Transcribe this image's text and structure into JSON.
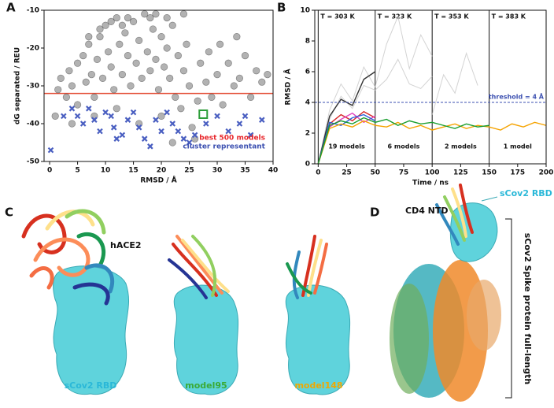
{
  "chart_data": [
    {
      "type": "scatter",
      "panel": "A",
      "xlabel": "RMSD / Å",
      "ylabel": "dG separated / REU",
      "xlim": [
        -1,
        40
      ],
      "ylim": [
        -50,
        -10
      ],
      "xticks": [
        0,
        5,
        10,
        15,
        20,
        25,
        30,
        35,
        40
      ],
      "yticks": [
        -50,
        -40,
        -30,
        -20,
        -10
      ],
      "hline": {
        "value": -32,
        "color": "#e34a33"
      },
      "annotations": [
        {
          "text": "best 500 models",
          "color": "#e8262b"
        },
        {
          "text": "cluster representant",
          "color": "#3b4fb0"
        }
      ],
      "series": [
        {
          "marker": "circle",
          "color": "#555555",
          "x": [
            1,
            1.5,
            2,
            3,
            3.5,
            4,
            5,
            5,
            6,
            6.5,
            7,
            7.5,
            8,
            8.5,
            9,
            9.5,
            10,
            10.5,
            11,
            11.5,
            12,
            12.5,
            13,
            13.5,
            14,
            14.5,
            15,
            15.5,
            16,
            16.5,
            17,
            17.5,
            18,
            18.5,
            19,
            19.5,
            20,
            20.5,
            21,
            21.5,
            22,
            22.5,
            23,
            23.5,
            24,
            24.5,
            25,
            25.5,
            26,
            26.5,
            27,
            28,
            28.5,
            29,
            30,
            30.5,
            31,
            32,
            33,
            33.5,
            34,
            35,
            36,
            37,
            38,
            39,
            8,
            12,
            16,
            20,
            4,
            11,
            14,
            18,
            9,
            21,
            7,
            24,
            19,
            13,
            22
          ],
          "values": [
            -38,
            -31,
            -28,
            -33,
            -26,
            -30,
            -24,
            -35,
            -22,
            -29,
            -19,
            -27,
            -33,
            -23,
            -17,
            -28,
            -14,
            -21,
            -25,
            -31,
            -12,
            -19,
            -27,
            -16,
            -22,
            -30,
            -13,
            -24,
            -18,
            -28,
            -11,
            -21,
            -26,
            -15,
            -23,
            -31,
            -17,
            -25,
            -20,
            -28,
            -14,
            -33,
            -22,
            -36,
            -26,
            -19,
            -30,
            -41,
            -44,
            -34,
            -24,
            -29,
            -21,
            -33,
            -27,
            -19,
            -35,
            -24,
            -30,
            -17,
            -28,
            -22,
            -33,
            -26,
            -29,
            -27,
            -38,
            -36,
            -40,
            -38,
            -40,
            -13,
            -12,
            -12,
            -15,
            -12,
            -17,
            -11,
            -11,
            -14,
            -45
          ]
        },
        {
          "marker": "x",
          "color": "#4a5fc1",
          "x": [
            0.2,
            2.5,
            4,
            5,
            6,
            7,
            8,
            9,
            10,
            11,
            11.5,
            12,
            13,
            14,
            15,
            16,
            17,
            18,
            19,
            20,
            21,
            22,
            23,
            24,
            25,
            26,
            28,
            30,
            32,
            34,
            35,
            36,
            38
          ],
          "values": [
            -47,
            -38,
            -36,
            -38,
            -40,
            -36,
            -39,
            -42,
            -37,
            -38,
            -41,
            -44,
            -43,
            -39,
            -37,
            -41,
            -44,
            -46,
            -39,
            -42,
            -37,
            -40,
            -42,
            -44,
            -45,
            -43,
            -40,
            -38,
            -42,
            -40,
            -38,
            -43,
            -39
          ]
        },
        {
          "marker": "square",
          "color": "#2e9e3a",
          "x": [
            27.5
          ],
          "values": [
            -37.5
          ]
        }
      ]
    },
    {
      "type": "line",
      "panel": "B",
      "xlabel": "Time / ns",
      "ylabel": "RMSD / Å",
      "xlim": [
        -3,
        200
      ],
      "ylim": [
        0,
        10
      ],
      "xticks": [
        0,
        25,
        50,
        75,
        100,
        125,
        150,
        175,
        200
      ],
      "yticks": [
        0,
        2,
        4,
        6,
        8,
        10
      ],
      "threshold": {
        "value": 4,
        "label": "threshold = 4 Å",
        "color": "#3b4fb0"
      },
      "phases": [
        {
          "start": 0,
          "label": "T = 303 K",
          "models": "19 models"
        },
        {
          "start": 50,
          "label": "T = 323 K",
          "models": "6 models"
        },
        {
          "start": 100,
          "label": "T = 353 K",
          "models": "2 models"
        },
        {
          "start": 150,
          "label": "T = 383 K",
          "models": "1 model"
        }
      ],
      "x": [
        0,
        10,
        20,
        30,
        40,
        50,
        60,
        70,
        80,
        90,
        100,
        110,
        120,
        130,
        140,
        150,
        160,
        170,
        180,
        190,
        200
      ],
      "series": [
        {
          "color": "#c8c8c8",
          "values": [
            0,
            3.5,
            5.2,
            4.1,
            6.3,
            5.0,
            7.8,
            9.6,
            6.2,
            8.4,
            7.0,
            null,
            null,
            null,
            null,
            null,
            null,
            null,
            null,
            null,
            null
          ]
        },
        {
          "color": "#c8c8c8",
          "values": [
            0,
            2.9,
            4.4,
            3.6,
            5.1,
            4.8,
            5.5,
            6.8,
            5.2,
            4.9,
            5.7,
            null,
            null,
            null,
            null,
            null,
            null,
            null,
            null,
            null,
            null
          ]
        },
        {
          "color": "#c8c8c8",
          "values": [
            null,
            null,
            null,
            null,
            null,
            null,
            null,
            null,
            null,
            null,
            3.2,
            5.8,
            4.6,
            7.2,
            5.1,
            null,
            null,
            null,
            null,
            null,
            null
          ]
        },
        {
          "color": "#333333",
          "values": [
            0,
            3.1,
            4.2,
            3.8,
            5.5,
            6.0,
            null,
            null,
            null,
            null,
            null,
            null,
            null,
            null,
            null,
            null,
            null,
            null,
            null,
            null,
            null
          ]
        },
        {
          "color": "#d62728",
          "values": [
            0,
            2.6,
            3.2,
            2.8,
            3.4,
            3.0,
            null,
            null,
            null,
            null,
            null,
            null,
            null,
            null,
            null,
            null,
            null,
            null,
            null,
            null,
            null
          ]
        },
        {
          "color": "#e040c0",
          "values": [
            0,
            2.4,
            2.9,
            3.3,
            2.7,
            3.1,
            null,
            null,
            null,
            null,
            null,
            null,
            null,
            null,
            null,
            null,
            null,
            null,
            null,
            null,
            null
          ]
        },
        {
          "color": "#2b5fd9",
          "values": [
            0,
            2.7,
            2.5,
            3.0,
            3.2,
            2.8,
            null,
            null,
            null,
            null,
            null,
            null,
            null,
            null,
            null,
            null,
            null,
            null,
            null,
            null,
            null
          ]
        },
        {
          "color": "#f5a300",
          "values": [
            0,
            2.3,
            2.6,
            2.4,
            2.8,
            2.5,
            2.4,
            2.7,
            2.3,
            2.5,
            2.2,
            2.4,
            2.6,
            2.3,
            2.5,
            2.4,
            2.2,
            2.6,
            2.4,
            2.7,
            2.5
          ]
        },
        {
          "color": "#1a9e2f",
          "values": [
            0,
            2.5,
            2.8,
            2.6,
            3.0,
            2.7,
            2.9,
            2.5,
            2.8,
            2.6,
            2.7,
            2.5,
            2.3,
            2.6,
            2.4,
            2.5,
            null,
            null,
            null,
            null,
            null
          ]
        }
      ]
    }
  ],
  "panel_c": {
    "letter": "C",
    "hace2": "hACE2",
    "rbd": "sCov2 RBD",
    "model95": "model95",
    "model148": "model148"
  },
  "panel_d": {
    "letter": "D",
    "cd4": "CD4 NTD",
    "rbd": "sCov2 RBD",
    "spike": "sCov2 Spike protein full-length"
  }
}
